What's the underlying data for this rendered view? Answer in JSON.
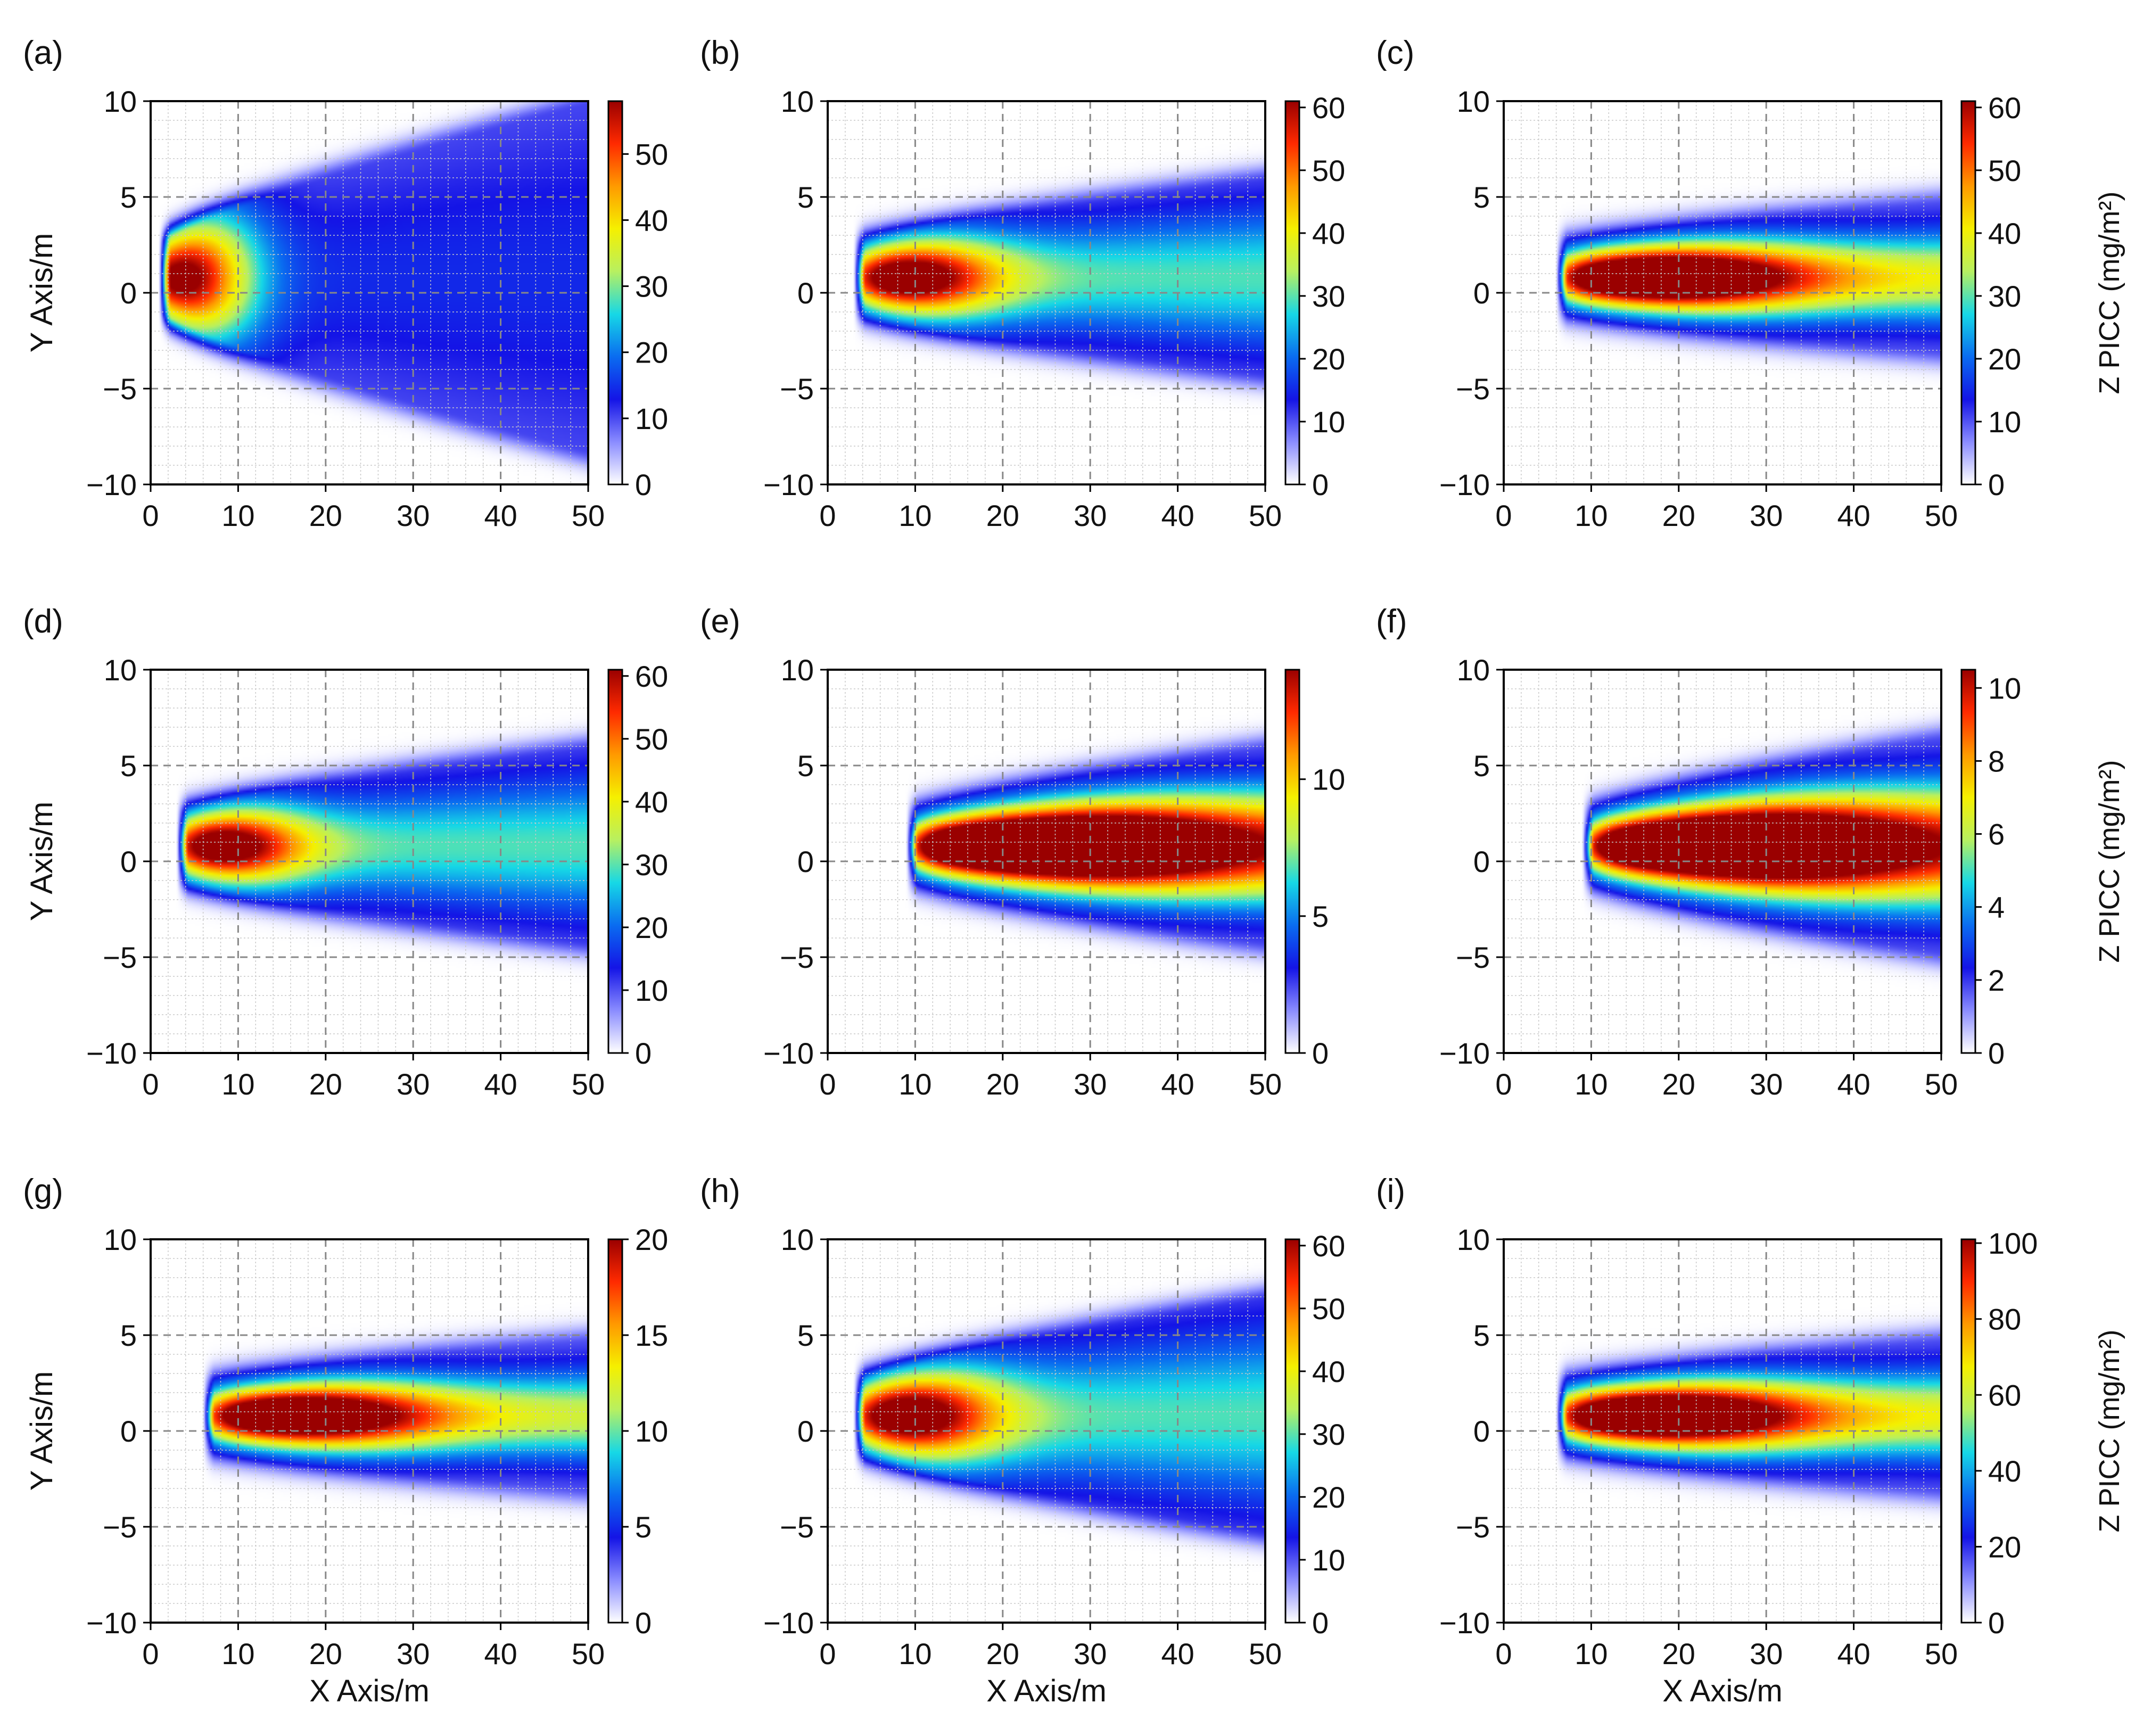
{
  "chart_data": [
    {
      "panel_label": "(a)",
      "type": "heatmap",
      "x_ticks": [
        0,
        10,
        20,
        30,
        40,
        50
      ],
      "y_ticks": [
        10,
        5,
        0,
        -5,
        -10
      ],
      "xlim": [
        0,
        50
      ],
      "ylim": [
        -10,
        10
      ],
      "grid": true,
      "ylabel": "Y Axis/m",
      "xlabel": "",
      "colorbar": {
        "min": 0,
        "max": 58,
        "ticks": [
          0,
          10,
          20,
          30,
          40,
          50
        ],
        "label": ""
      },
      "plume": {
        "source_x": 1,
        "peak_x": 3,
        "halfwidth_end": 9,
        "spread": 0.9,
        "peak_level": 1.0,
        "far_level": 0.12
      }
    },
    {
      "panel_label": "(b)",
      "type": "heatmap",
      "x_ticks": [
        0,
        10,
        20,
        30,
        40,
        50
      ],
      "y_ticks": [
        10,
        5,
        0,
        -5,
        -10
      ],
      "xlim": [
        0,
        50
      ],
      "ylim": [
        -10,
        10
      ],
      "grid": true,
      "ylabel": "",
      "xlabel": "",
      "colorbar": {
        "min": 0,
        "max": 61,
        "ticks": [
          0,
          10,
          20,
          30,
          40,
          50,
          60
        ],
        "label": ""
      },
      "plume": {
        "source_x": 3,
        "peak_x": 8,
        "halfwidth_end": 5,
        "spread": 0.6,
        "peak_level": 0.85,
        "far_level": 0.38
      }
    },
    {
      "panel_label": "(c)",
      "type": "heatmap",
      "x_ticks": [
        0,
        10,
        20,
        30,
        40,
        50
      ],
      "y_ticks": [
        10,
        5,
        0,
        -5,
        -10
      ],
      "xlim": [
        0,
        50
      ],
      "ylim": [
        -10,
        10
      ],
      "grid": true,
      "ylabel": "",
      "xlabel": "",
      "colorbar": {
        "min": 0,
        "max": 61,
        "ticks": [
          0,
          10,
          20,
          30,
          40,
          50,
          60
        ],
        "label": "Z PICC (mg/m²)"
      },
      "plume": {
        "source_x": 6,
        "peak_x": 17,
        "halfwidth_end": 3.8,
        "spread": 0.45,
        "peak_level": 0.92,
        "far_level": 0.55
      }
    },
    {
      "panel_label": "(d)",
      "type": "heatmap",
      "x_ticks": [
        0,
        10,
        20,
        30,
        40,
        50
      ],
      "y_ticks": [
        10,
        5,
        0,
        -5,
        -10
      ],
      "xlim": [
        0,
        50
      ],
      "ylim": [
        -10,
        10
      ],
      "grid": true,
      "ylabel": "Y Axis/m",
      "xlabel": "",
      "colorbar": {
        "min": 0,
        "max": 61,
        "ticks": [
          0,
          10,
          20,
          30,
          40,
          50,
          60
        ],
        "label": ""
      },
      "plume": {
        "source_x": 3,
        "peak_x": 7,
        "halfwidth_end": 5,
        "spread": 0.6,
        "peak_level": 0.85,
        "far_level": 0.38
      }
    },
    {
      "panel_label": "(e)",
      "type": "heatmap",
      "x_ticks": [
        0,
        10,
        20,
        30,
        40,
        50
      ],
      "y_ticks": [
        10,
        5,
        0,
        -5,
        -10
      ],
      "xlim": [
        0,
        50
      ],
      "ylim": [
        -10,
        10
      ],
      "grid": true,
      "ylabel": "",
      "xlabel": "",
      "colorbar": {
        "min": 0,
        "max": 14,
        "ticks": [
          0,
          5,
          10
        ],
        "label": ""
      },
      "plume": {
        "source_x": 9,
        "peak_x": 25,
        "halfwidth_end": 5,
        "spread": 0.45,
        "peak_level": 0.95,
        "far_level": 0.72
      }
    },
    {
      "panel_label": "(f)",
      "type": "heatmap",
      "x_ticks": [
        0,
        10,
        20,
        30,
        40,
        50
      ],
      "y_ticks": [
        10,
        5,
        0,
        -5,
        -10
      ],
      "xlim": [
        0,
        50
      ],
      "ylim": [
        -10,
        10
      ],
      "grid": true,
      "ylabel": "",
      "xlabel": "",
      "colorbar": {
        "min": 0,
        "max": 10.5,
        "ticks": [
          0,
          2,
          4,
          6,
          8,
          10
        ],
        "label": "Z PICC (mg/m²)"
      },
      "plume": {
        "source_x": 9,
        "peak_x": 25,
        "halfwidth_end": 5.5,
        "spread": 0.45,
        "peak_level": 0.95,
        "far_level": 0.72
      }
    },
    {
      "panel_label": "(g)",
      "type": "heatmap",
      "x_ticks": [
        0,
        10,
        20,
        30,
        40,
        50
      ],
      "y_ticks": [
        10,
        5,
        0,
        -5,
        -10
      ],
      "xlim": [
        0,
        50
      ],
      "ylim": [
        -10,
        10
      ],
      "grid": true,
      "ylabel": "Y Axis/m",
      "xlabel": "X Axis/m",
      "colorbar": {
        "min": 0,
        "max": 20,
        "ticks": [
          0,
          5,
          10,
          15,
          20
        ],
        "label": ""
      },
      "plume": {
        "source_x": 6,
        "peak_x": 16,
        "halfwidth_end": 3.8,
        "spread": 0.45,
        "peak_level": 0.88,
        "far_level": 0.5
      }
    },
    {
      "panel_label": "(h)",
      "type": "heatmap",
      "x_ticks": [
        0,
        10,
        20,
        30,
        40,
        50
      ],
      "y_ticks": [
        10,
        5,
        0,
        -5,
        -10
      ],
      "xlim": [
        0,
        50
      ],
      "ylim": [
        -10,
        10
      ],
      "grid": true,
      "ylabel": "",
      "xlabel": "X Axis/m",
      "colorbar": {
        "min": 0,
        "max": 61,
        "ticks": [
          0,
          10,
          20,
          30,
          40,
          50,
          60
        ],
        "label": ""
      },
      "plume": {
        "source_x": 3,
        "peak_x": 8,
        "halfwidth_end": 6,
        "spread": 0.65,
        "peak_level": 0.85,
        "far_level": 0.38
      }
    },
    {
      "panel_label": "(i)",
      "type": "heatmap",
      "x_ticks": [
        0,
        10,
        20,
        30,
        40,
        50
      ],
      "y_ticks": [
        10,
        5,
        0,
        -5,
        -10
      ],
      "xlim": [
        0,
        50
      ],
      "ylim": [
        -10,
        10
      ],
      "grid": true,
      "ylabel": "",
      "xlabel": "X Axis/m",
      "colorbar": {
        "min": 0,
        "max": 101,
        "ticks": [
          0,
          20,
          40,
          60,
          80,
          100
        ],
        "label": "Z PICC (mg/m²)"
      },
      "plume": {
        "source_x": 6,
        "peak_x": 17,
        "halfwidth_end": 3.8,
        "spread": 0.45,
        "peak_level": 0.9,
        "far_level": 0.55
      }
    }
  ],
  "colors": {
    "colormap": [
      "#ffffff",
      "#8a8cff",
      "#1414e6",
      "#0a6cf0",
      "#16d8e6",
      "#b8f060",
      "#f5f000",
      "#ff9a00",
      "#ff2a00",
      "#9a0000"
    ],
    "grid_major": "#888888",
    "grid_minor": "#c8c8c8",
    "axis": "#000000"
  }
}
